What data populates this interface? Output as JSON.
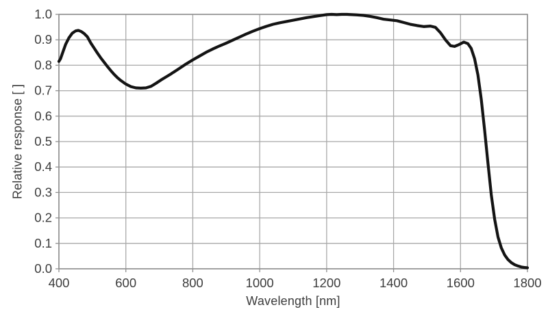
{
  "figure": {
    "background": "#ffffff",
    "curve_color": "#141414",
    "grid_color": "#a8a8a8",
    "axis_color": "#8f8f8f",
    "text_color": "#3c3c3c"
  },
  "chart_data": {
    "type": "line",
    "title": "",
    "xlabel": "Wavelength [nm]",
    "ylabel": "Relative response [ ]",
    "xlim": [
      400,
      1800
    ],
    "ylim": [
      0.0,
      1.0
    ],
    "grid": true,
    "legend": false,
    "xticks": [
      400,
      600,
      800,
      1000,
      1200,
      1400,
      1600,
      1800
    ],
    "xtick_labels": [
      "400",
      "600",
      "800",
      "1000",
      "1200",
      "1400",
      "1600",
      "1800"
    ],
    "yticks": [
      0.0,
      0.1,
      0.2,
      0.3,
      0.4,
      0.5,
      0.6,
      0.7,
      0.8,
      0.9,
      1.0
    ],
    "ytick_labels": [
      "0.0",
      "0.1",
      "0.2",
      "0.3",
      "0.4",
      "0.5",
      "0.6",
      "0.7",
      "0.8",
      "0.9",
      "1.0"
    ],
    "series": [
      {
        "name": "relative-response",
        "color": "#141414",
        "points": [
          [
            400,
            0.815
          ],
          [
            405,
            0.826
          ],
          [
            410,
            0.845
          ],
          [
            420,
            0.882
          ],
          [
            430,
            0.908
          ],
          [
            440,
            0.926
          ],
          [
            450,
            0.935
          ],
          [
            458,
            0.937
          ],
          [
            466,
            0.933
          ],
          [
            475,
            0.925
          ],
          [
            485,
            0.912
          ],
          [
            495,
            0.888
          ],
          [
            505,
            0.868
          ],
          [
            515,
            0.848
          ],
          [
            525,
            0.829
          ],
          [
            535,
            0.812
          ],
          [
            545,
            0.795
          ],
          [
            555,
            0.779
          ],
          [
            565,
            0.764
          ],
          [
            575,
            0.751
          ],
          [
            585,
            0.74
          ],
          [
            600,
            0.726
          ],
          [
            615,
            0.716
          ],
          [
            630,
            0.711
          ],
          [
            645,
            0.71
          ],
          [
            660,
            0.711
          ],
          [
            675,
            0.717
          ],
          [
            690,
            0.729
          ],
          [
            705,
            0.742
          ],
          [
            720,
            0.754
          ],
          [
            735,
            0.766
          ],
          [
            750,
            0.779
          ],
          [
            765,
            0.792
          ],
          [
            780,
            0.805
          ],
          [
            800,
            0.821
          ],
          [
            820,
            0.836
          ],
          [
            840,
            0.851
          ],
          [
            860,
            0.864
          ],
          [
            880,
            0.876
          ],
          [
            900,
            0.887
          ],
          [
            920,
            0.899
          ],
          [
            940,
            0.911
          ],
          [
            960,
            0.923
          ],
          [
            980,
            0.934
          ],
          [
            1000,
            0.944
          ],
          [
            1020,
            0.953
          ],
          [
            1040,
            0.961
          ],
          [
            1060,
            0.967
          ],
          [
            1080,
            0.972
          ],
          [
            1100,
            0.977
          ],
          [
            1120,
            0.982
          ],
          [
            1140,
            0.987
          ],
          [
            1160,
            0.991
          ],
          [
            1180,
            0.995
          ],
          [
            1200,
            0.999
          ],
          [
            1215,
            1.0
          ],
          [
            1230,
            0.999
          ],
          [
            1245,
            1.0
          ],
          [
            1260,
            1.0
          ],
          [
            1275,
            0.999
          ],
          [
            1290,
            0.998
          ],
          [
            1310,
            0.996
          ],
          [
            1330,
            0.992
          ],
          [
            1350,
            0.987
          ],
          [
            1370,
            0.981
          ],
          [
            1390,
            0.978
          ],
          [
            1410,
            0.975
          ],
          [
            1430,
            0.968
          ],
          [
            1450,
            0.961
          ],
          [
            1470,
            0.956
          ],
          [
            1490,
            0.952
          ],
          [
            1510,
            0.954
          ],
          [
            1525,
            0.949
          ],
          [
            1540,
            0.928
          ],
          [
            1555,
            0.9
          ],
          [
            1570,
            0.877
          ],
          [
            1582,
            0.874
          ],
          [
            1595,
            0.881
          ],
          [
            1610,
            0.891
          ],
          [
            1622,
            0.885
          ],
          [
            1632,
            0.866
          ],
          [
            1642,
            0.826
          ],
          [
            1652,
            0.762
          ],
          [
            1662,
            0.666
          ],
          [
            1672,
            0.545
          ],
          [
            1682,
            0.415
          ],
          [
            1692,
            0.29
          ],
          [
            1702,
            0.195
          ],
          [
            1712,
            0.125
          ],
          [
            1722,
            0.082
          ],
          [
            1732,
            0.054
          ],
          [
            1742,
            0.036
          ],
          [
            1752,
            0.024
          ],
          [
            1762,
            0.016
          ],
          [
            1772,
            0.011
          ],
          [
            1782,
            0.007
          ],
          [
            1792,
            0.005
          ],
          [
            1800,
            0.004
          ]
        ]
      }
    ]
  }
}
